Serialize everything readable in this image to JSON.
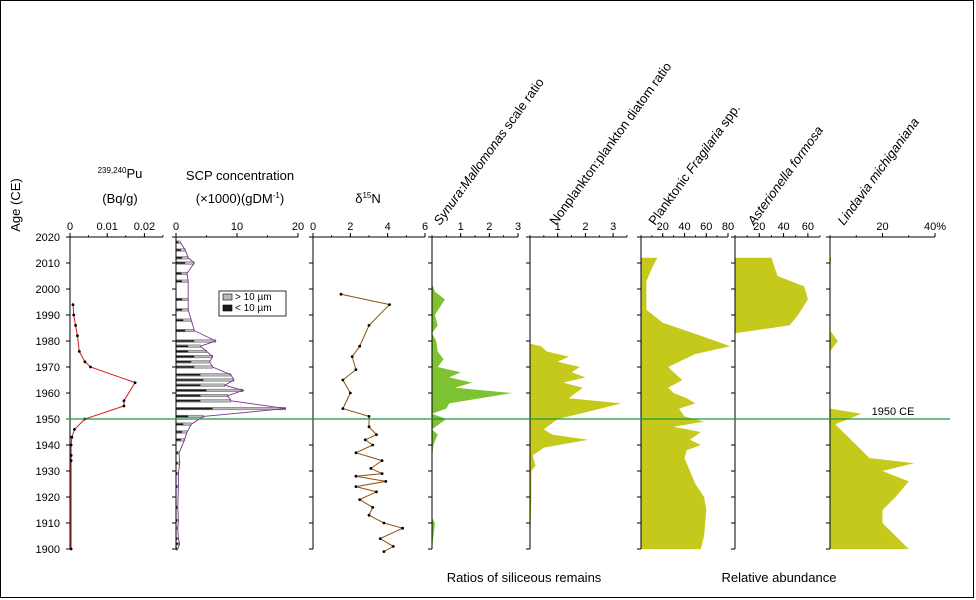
{
  "chart_data": {
    "type": "area",
    "y_axis": {
      "label": "Age (CE)",
      "ticks": [
        1900,
        1910,
        1920,
        1930,
        1940,
        1950,
        1960,
        1970,
        1980,
        1990,
        2000,
        2010,
        2020
      ],
      "ylim": [
        1900,
        2020
      ]
    },
    "reference_line": {
      "year": 1950,
      "label": "1950 CE",
      "color": "#1a9641"
    },
    "group_labels": {
      "ratios": "Ratios of siliceous remains",
      "abundance": "Relative abundance"
    },
    "panels": [
      {
        "id": "pu",
        "title_sup": "239,240",
        "title_main": "Pu",
        "title_line2": "(Bq/g)",
        "type": "line",
        "color": "#d7191c",
        "xlim": [
          0,
          0.025
        ],
        "ticks": [
          0,
          0.01,
          0.02
        ],
        "tick_labels": [
          "0",
          "0.01",
          "0.02"
        ],
        "points": [
          [
            0.0003,
            1900
          ],
          [
            0.0003,
            1934
          ],
          [
            0.0003,
            1936
          ],
          [
            0.0003,
            1940
          ],
          [
            0.0005,
            1943
          ],
          [
            0.0012,
            1946
          ],
          [
            0.004,
            1950
          ],
          [
            0.0145,
            1955
          ],
          [
            0.0145,
            1957
          ],
          [
            0.0175,
            1964
          ],
          [
            0.0055,
            1970
          ],
          [
            0.004,
            1972
          ],
          [
            0.0025,
            1976
          ],
          [
            0.002,
            1982
          ],
          [
            0.0015,
            1986
          ],
          [
            0.001,
            1990
          ],
          [
            0.0008,
            1994
          ]
        ]
      },
      {
        "id": "scp",
        "title_line1": "SCP concentration",
        "title_line2": "(×1000)(gDM",
        "title_sup": "-1",
        "title_tail": ")",
        "type": "bar",
        "line_color": "#7b3294",
        "xlim": [
          0,
          20
        ],
        "ticks": [
          0,
          10,
          20
        ],
        "tick_labels": [
          "0",
          "10",
          "20"
        ],
        "legend": [
          "> 10 µm",
          "< 10 µm"
        ],
        "legend_colors": [
          "#b8b8b8",
          "#1a1a1a"
        ],
        "bars": [
          [
            1900,
            0.3,
            0.2
          ],
          [
            1902,
            0.6,
            0.4
          ],
          [
            1904,
            0.4,
            0.2
          ],
          [
            1908,
            0.3,
            0.1
          ],
          [
            1911,
            0.4,
            0.2
          ],
          [
            1916,
            0.3,
            0.2
          ],
          [
            1924,
            0.4,
            0.2
          ],
          [
            1929,
            0.4,
            0.2
          ],
          [
            1933,
            0.6,
            0.3
          ],
          [
            1937,
            0.5,
            0.3
          ],
          [
            1942,
            1.4,
            0.8
          ],
          [
            1945,
            1.8,
            1.0
          ],
          [
            1948,
            2.5,
            1.2
          ],
          [
            1951,
            4.5,
            2.0
          ],
          [
            1954,
            18.0,
            6.0
          ],
          [
            1957,
            9.0,
            4.0
          ],
          [
            1959,
            8.5,
            4.0
          ],
          [
            1961,
            11.0,
            5.0
          ],
          [
            1963,
            8.0,
            4.0
          ],
          [
            1965,
            9.5,
            4.5
          ],
          [
            1967,
            9.0,
            4.0
          ],
          [
            1970,
            6.0,
            3.0
          ],
          [
            1972,
            5.5,
            2.5
          ],
          [
            1974,
            6.0,
            3.0
          ],
          [
            1976,
            5.0,
            2.0
          ],
          [
            1978,
            4.0,
            2.0
          ],
          [
            1980,
            6.5,
            3.0
          ],
          [
            1984,
            3.0,
            1.5
          ],
          [
            1988,
            2.5,
            1.2
          ],
          [
            1992,
            2.0,
            1.0
          ],
          [
            1996,
            2.0,
            1.0
          ],
          [
            2003,
            2.0,
            1.0
          ],
          [
            2006,
            1.8,
            0.9
          ],
          [
            2010,
            3.0,
            1.5
          ],
          [
            2012,
            2.0,
            1.0
          ],
          [
            2015,
            1.5,
            0.8
          ],
          [
            2018,
            0.7,
            0.4
          ]
        ]
      },
      {
        "id": "d15n",
        "title_main": "δ",
        "title_sup": "15",
        "title_tail": "N",
        "type": "line",
        "color": "#8c510a",
        "xlim": [
          0,
          6
        ],
        "ticks": [
          0,
          2,
          4,
          6
        ],
        "tick_labels": [
          "0",
          "2",
          "4",
          "6"
        ],
        "points": [
          [
            3.8,
            1899
          ],
          [
            4.3,
            1901
          ],
          [
            3.6,
            1904
          ],
          [
            4.8,
            1908
          ],
          [
            3.8,
            1910
          ],
          [
            3.0,
            1913
          ],
          [
            3.2,
            1916
          ],
          [
            2.5,
            1919
          ],
          [
            3.4,
            1922
          ],
          [
            2.3,
            1924
          ],
          [
            3.9,
            1926
          ],
          [
            2.3,
            1928
          ],
          [
            3.7,
            1929
          ],
          [
            3.1,
            1931
          ],
          [
            3.7,
            1934
          ],
          [
            2.3,
            1937
          ],
          [
            3.2,
            1940
          ],
          [
            2.8,
            1942
          ],
          [
            3.4,
            1944
          ],
          [
            3.0,
            1947
          ],
          [
            3.0,
            1951
          ],
          [
            1.6,
            1954
          ],
          [
            2.0,
            1960
          ],
          [
            1.6,
            1965
          ],
          [
            2.3,
            1969
          ],
          [
            2.1,
            1974
          ],
          [
            2.5,
            1978
          ],
          [
            3.0,
            1986
          ],
          [
            4.1,
            1994
          ],
          [
            1.5,
            1998
          ]
        ]
      },
      {
        "id": "synura",
        "title_italic1": "Synura",
        "title_plain": ":",
        "title_italic2": "Mallomonas",
        "title_tail": " scale ratio",
        "type": "area",
        "color": "#7dc230",
        "xlim": [
          0,
          3
        ],
        "ticks": [
          1,
          2,
          3
        ],
        "tick_labels": [
          "1",
          "2",
          "3"
        ],
        "points": [
          [
            0,
            1900
          ],
          [
            0.1,
            1910
          ],
          [
            0,
            1912
          ],
          [
            0,
            1935
          ],
          [
            0.05,
            1940
          ],
          [
            0.2,
            1944
          ],
          [
            0,
            1946
          ],
          [
            0.5,
            1950
          ],
          [
            0,
            1952
          ],
          [
            0.5,
            1954
          ],
          [
            0.6,
            1956
          ],
          [
            2.8,
            1960
          ],
          [
            0.8,
            1962
          ],
          [
            1.4,
            1964
          ],
          [
            0.6,
            1966
          ],
          [
            1.0,
            1968
          ],
          [
            0.2,
            1970
          ],
          [
            0.4,
            1973
          ],
          [
            0.2,
            1976
          ],
          [
            0.15,
            1980
          ],
          [
            0,
            1983
          ],
          [
            0.2,
            1986
          ],
          [
            0.1,
            1990
          ],
          [
            0.45,
            1996
          ],
          [
            0.1,
            1999
          ],
          [
            0,
            2002
          ],
          [
            0,
            2008
          ],
          [
            0,
            2018
          ]
        ]
      },
      {
        "id": "nonplankton",
        "title_plain": "Nonplankton:plankton diatom ratio",
        "type": "area",
        "color": "#c5c91c",
        "xlim": [
          0,
          3.5
        ],
        "ticks": [
          1,
          2,
          3
        ],
        "tick_labels": [
          "1",
          "2",
          "3"
        ],
        "points": [
          [
            0,
            1900
          ],
          [
            0.05,
            1920
          ],
          [
            0.05,
            1930
          ],
          [
            0.2,
            1932
          ],
          [
            0.1,
            1936
          ],
          [
            0.5,
            1939
          ],
          [
            2.1,
            1942
          ],
          [
            0.8,
            1944
          ],
          [
            0.5,
            1946
          ],
          [
            1.0,
            1950
          ],
          [
            1.8,
            1952
          ],
          [
            3.3,
            1956
          ],
          [
            1.4,
            1958
          ],
          [
            1.9,
            1962
          ],
          [
            1.2,
            1964
          ],
          [
            2.0,
            1966
          ],
          [
            1.5,
            1968
          ],
          [
            1.8,
            1970
          ],
          [
            1.0,
            1972
          ],
          [
            1.4,
            1974
          ],
          [
            0.6,
            1976
          ],
          [
            0.4,
            1978
          ],
          [
            0,
            1979
          ]
        ]
      },
      {
        "id": "fragilaria",
        "title_plain1": "Planktonic ",
        "title_italic": "Fragilaria",
        "title_plain2": " spp.",
        "type": "area",
        "color": "#c5c91c",
        "xlim": [
          0,
          80
        ],
        "ticks": [
          20,
          40,
          60,
          80
        ],
        "tick_labels": [
          "20",
          "40",
          "60",
          "80"
        ],
        "points": [
          [
            55,
            1900
          ],
          [
            58,
            1905
          ],
          [
            60,
            1915
          ],
          [
            58,
            1920
          ],
          [
            50,
            1925
          ],
          [
            45,
            1930
          ],
          [
            40,
            1935
          ],
          [
            42,
            1938
          ],
          [
            55,
            1940
          ],
          [
            45,
            1942
          ],
          [
            55,
            1945
          ],
          [
            30,
            1947
          ],
          [
            58,
            1949
          ],
          [
            40,
            1951
          ],
          [
            35,
            1954
          ],
          [
            50,
            1956
          ],
          [
            42,
            1958
          ],
          [
            30,
            1960
          ],
          [
            25,
            1962
          ],
          [
            38,
            1965
          ],
          [
            30,
            1968
          ],
          [
            25,
            1970
          ],
          [
            35,
            1972
          ],
          [
            50,
            1975
          ],
          [
            82,
            1978
          ],
          [
            55,
            1982
          ],
          [
            20,
            1987
          ],
          [
            5,
            1992
          ],
          [
            5,
            2003
          ],
          [
            10,
            2008
          ],
          [
            15,
            2012
          ],
          [
            0,
            2012
          ]
        ]
      },
      {
        "id": "asterionella",
        "title_italic": "Asterionella formosa",
        "type": "area",
        "color": "#c5c91c",
        "xlim": [
          0,
          70
        ],
        "ticks": [
          20,
          40,
          60
        ],
        "tick_labels": [
          "20",
          "40",
          "60"
        ],
        "points": [
          [
            0,
            1983
          ],
          [
            45,
            1986
          ],
          [
            52,
            1990
          ],
          [
            60,
            1996
          ],
          [
            57,
            2001
          ],
          [
            35,
            2005
          ],
          [
            30,
            2012
          ],
          [
            0,
            2012
          ]
        ]
      },
      {
        "id": "lindavia",
        "title_italic": "Lindavia michiganiana",
        "type": "area",
        "color": "#c5c91c",
        "xlim": [
          0,
          40
        ],
        "ticks": [
          20,
          40
        ],
        "tick_labels": [
          "20",
          "40%"
        ],
        "points": [
          [
            30,
            1900
          ],
          [
            25,
            1905
          ],
          [
            20,
            1910
          ],
          [
            20,
            1915
          ],
          [
            25,
            1920
          ],
          [
            30,
            1926
          ],
          [
            20,
            1930
          ],
          [
            32,
            1933
          ],
          [
            15,
            1935
          ],
          [
            10,
            1940
          ],
          [
            5,
            1945
          ],
          [
            2,
            1948
          ],
          [
            12,
            1952
          ],
          [
            0,
            1954
          ],
          [
            0,
            1976
          ],
          [
            3,
            1980
          ],
          [
            0,
            1984
          ],
          [
            0,
            2008
          ],
          [
            0.5,
            2012
          ],
          [
            0,
            2012
          ]
        ]
      }
    ]
  }
}
